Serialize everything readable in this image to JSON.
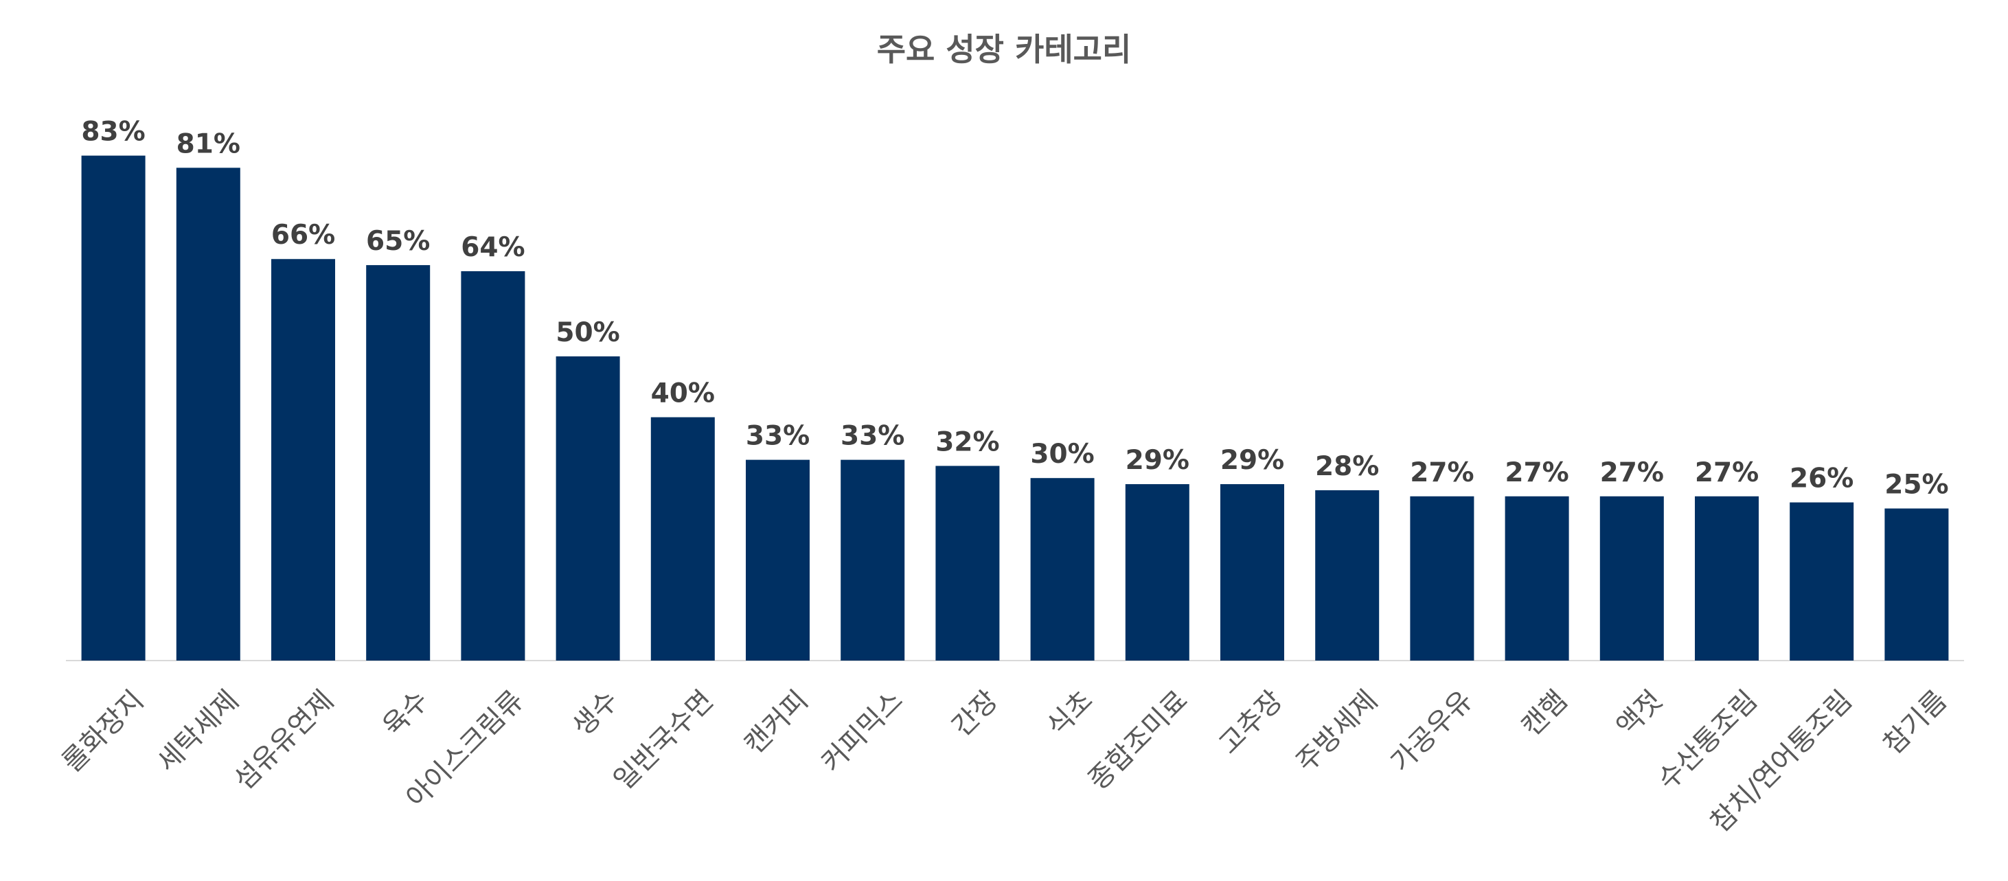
{
  "chart_data": {
    "type": "bar",
    "title": "주요 성장 카테고리",
    "categories": [
      "롤화장지",
      "세탁세제",
      "섬유유연제",
      "육수",
      "아이스크림류",
      "생수",
      "일반국수면",
      "캔커피",
      "커피믹스",
      "간장",
      "식초",
      "종합조미료",
      "고추장",
      "주방세제",
      "가공우유",
      "캔햄",
      "액젓",
      "수산통조림",
      "참치/연어통조림",
      "참기름"
    ],
    "values": [
      83,
      81,
      66,
      65,
      64,
      50,
      40,
      33,
      33,
      32,
      30,
      29,
      29,
      28,
      27,
      27,
      27,
      27,
      26,
      25
    ],
    "value_suffix": "%",
    "ylim": [
      0,
      92
    ],
    "grid": false,
    "legend": "none",
    "bar_color": "#003063"
  }
}
